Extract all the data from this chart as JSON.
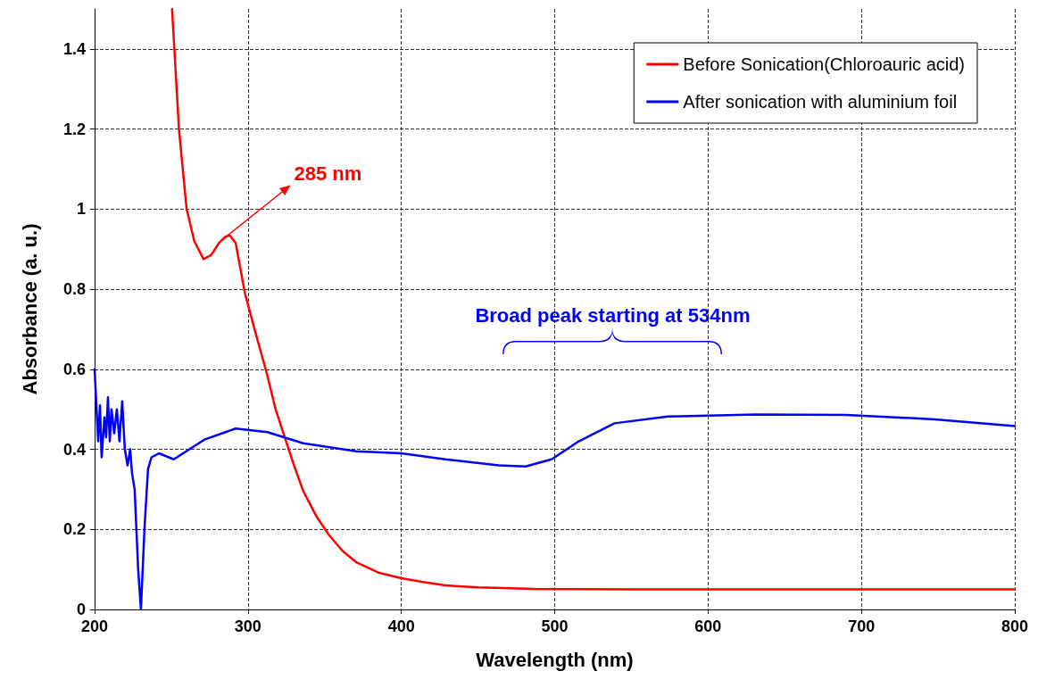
{
  "chart_data": {
    "type": "line",
    "xlabel": "Wavelength (nm)",
    "ylabel": "Absorbance (a. u.)",
    "xlim": [
      200,
      800
    ],
    "xticks": [
      200,
      300,
      400,
      500,
      600,
      700,
      800
    ],
    "ylim": [
      0,
      1.5
    ],
    "yticks": [
      0,
      0.2,
      0.4,
      0.6,
      0.8,
      1,
      1.2,
      1.4
    ],
    "grid": true,
    "legend": "top right",
    "marker": "none",
    "line_style": "solid",
    "series": [
      {
        "name": "Before Sonication(Chloroauric acid)",
        "color": "#ff0000",
        "x": [
          250.5,
          255,
          260,
          265,
          271,
          276,
          281,
          285,
          288,
          292,
          298,
          305,
          312.6,
          318,
          324,
          330,
          336,
          345,
          353,
          362,
          370.6,
          385,
          400,
          415,
          428.7,
          450,
          487,
          550,
          600,
          650,
          700,
          750,
          800
        ],
        "values": [
          1.5,
          1.2,
          1.0,
          0.92,
          0.875,
          0.885,
          0.915,
          0.93,
          0.935,
          0.915,
          0.79,
          0.69,
          0.585,
          0.5,
          0.43,
          0.36,
          0.296,
          0.23,
          0.185,
          0.145,
          0.118,
          0.092,
          0.078,
          0.068,
          0.06,
          0.055,
          0.051,
          0.05,
          0.05,
          0.05,
          0.05,
          0.05,
          0.05
        ]
      },
      {
        "name": "After sonication with aluminium foil",
        "color": "#0000ff",
        "x": [
          200,
          202.3,
          203.5,
          204.6,
          206.4,
          207.5,
          208.7,
          209.9,
          211,
          212.8,
          214.5,
          216.2,
          218,
          219.7,
          221.5,
          223.2,
          224.4,
          226.1,
          228.4,
          230.2,
          232.5,
          234.8,
          237.1,
          242,
          251.6,
          272,
          292,
          312.6,
          336,
          370.6,
          400,
          428.7,
          463.5,
          481,
          498,
          515.7,
          539,
          573.8,
          631.8,
          690,
          747.9,
          800
        ],
        "values": [
          0.6,
          0.42,
          0.51,
          0.38,
          0.48,
          0.43,
          0.53,
          0.42,
          0.5,
          0.44,
          0.5,
          0.42,
          0.52,
          0.4,
          0.36,
          0.4,
          0.34,
          0.3,
          0.1,
          0.0,
          0.2,
          0.35,
          0.38,
          0.39,
          0.375,
          0.425,
          0.452,
          0.443,
          0.415,
          0.395,
          0.39,
          0.375,
          0.36,
          0.357,
          0.375,
          0.42,
          0.465,
          0.482,
          0.487,
          0.486,
          0.475,
          0.458
        ]
      }
    ],
    "annotations": [
      {
        "text": "285 nm",
        "x": 287,
        "y": 0.935
      },
      "Broad peak starting at 534nm"
    ]
  }
}
